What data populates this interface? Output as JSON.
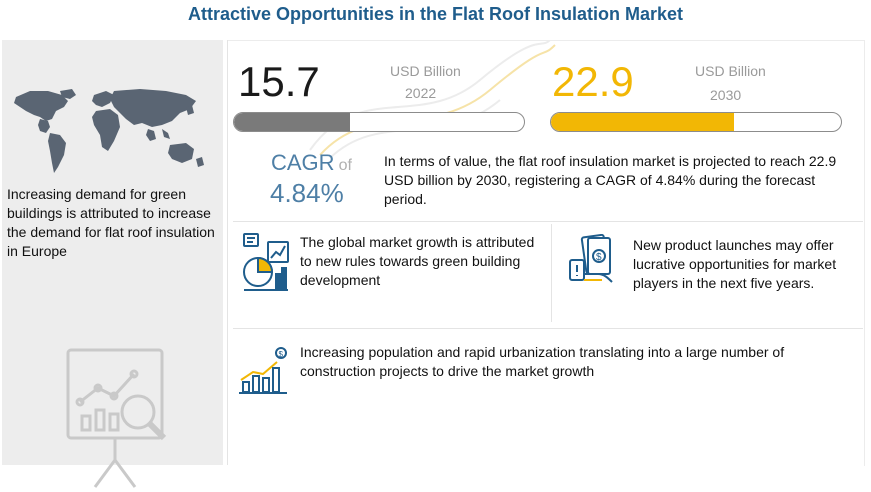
{
  "title": "Attractive Opportunities in the Flat Roof Insulation Market",
  "left_panel": {
    "text": "Increasing demand for green buildings is attributed to increase the demand for flat roof insulation in Europe",
    "map_icon": "world-map-icon",
    "analytics_icon": "analytics-board-icon"
  },
  "market_2022": {
    "value": "15.7",
    "unit": "USD Billion",
    "year": "2022",
    "fill_fraction": 0.4
  },
  "market_2030": {
    "value": "22.9",
    "unit": "USD Billion",
    "year": "2030",
    "fill_fraction": 0.63
  },
  "cagr": {
    "label": "CAGR",
    "of": "of",
    "value": "4.84%"
  },
  "summary": "In terms of value, the flat roof insulation market is projected to reach 22.9 USD billion by 2030, registering a CAGR of 4.84% during the forecast period.",
  "insights": {
    "growth": {
      "text": "The global market growth is attributed to new rules towards green building development",
      "icon": "growth-chart-icon"
    },
    "launch": {
      "text": "New product launches may offer lucrative opportunities for market players in the next five years.",
      "icon": "money-hand-icon"
    },
    "urban": {
      "text": "Increasing population and rapid urbanization translating into a large number of construction projects to drive the market growth",
      "icon": "rising-bars-icon"
    }
  },
  "colors": {
    "title": "#1f5d8c",
    "accent_yellow": "#f2b705",
    "accent_blue": "#4e7fa6",
    "bar_gray": "#7a7a7a",
    "panel_gray": "#ededed"
  }
}
